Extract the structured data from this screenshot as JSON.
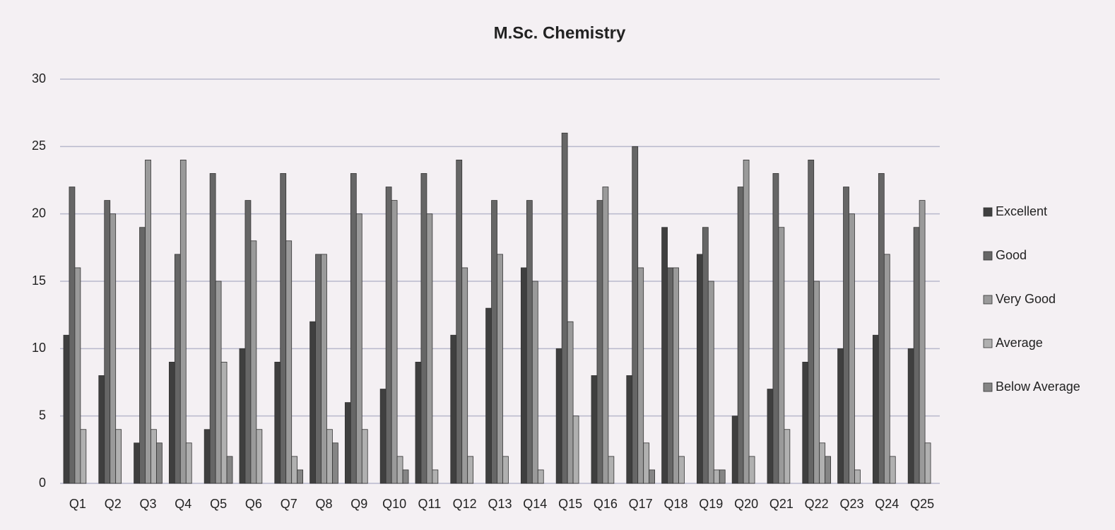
{
  "chart_data": {
    "type": "bar",
    "title": "M.Sc. Chemistry",
    "categories": [
      "Q1",
      "Q2",
      "Q3",
      "Q4",
      "Q5",
      "Q6",
      "Q7",
      "Q8",
      "Q9",
      "Q10",
      "Q11",
      "Q12",
      "Q13",
      "Q14",
      "Q15",
      "Q16",
      "Q17",
      "Q18",
      "Q19",
      "Q20",
      "Q21",
      "Q22",
      "Q23",
      "Q24",
      "Q25"
    ],
    "series": [
      {
        "name": "Excellent",
        "color": "#3f3f3f",
        "values": [
          11,
          8,
          3,
          9,
          4,
          10,
          9,
          12,
          6,
          7,
          9,
          11,
          13,
          16,
          10,
          8,
          8,
          19,
          17,
          5,
          7,
          9,
          10,
          11,
          10
        ]
      },
      {
        "name": "Good",
        "color": "#666666",
        "values": [
          22,
          21,
          19,
          17,
          23,
          21,
          23,
          17,
          23,
          22,
          23,
          24,
          21,
          21,
          26,
          21,
          25,
          16,
          19,
          22,
          23,
          24,
          22,
          23,
          19
        ]
      },
      {
        "name": "Very Good",
        "color": "#9a9a9a",
        "values": [
          16,
          20,
          24,
          24,
          15,
          18,
          18,
          17,
          20,
          21,
          20,
          16,
          17,
          15,
          12,
          22,
          16,
          16,
          15,
          24,
          19,
          15,
          20,
          17,
          21
        ]
      },
      {
        "name": "Average",
        "color": "#b0b0b0",
        "values": [
          4,
          4,
          4,
          3,
          9,
          4,
          2,
          4,
          4,
          2,
          1,
          2,
          2,
          1,
          5,
          2,
          3,
          2,
          1,
          2,
          4,
          3,
          1,
          2,
          3
        ]
      },
      {
        "name": "Below Average",
        "color": "#858585",
        "values": [
          0,
          0,
          3,
          0,
          2,
          0,
          1,
          3,
          0,
          1,
          0,
          0,
          0,
          0,
          0,
          0,
          1,
          0,
          1,
          0,
          0,
          2,
          0,
          0,
          0
        ]
      }
    ],
    "ylim": [
      0,
      30
    ],
    "yticks": [
      0,
      5,
      10,
      15,
      20,
      25,
      30
    ],
    "grid": true,
    "legend": "right"
  }
}
